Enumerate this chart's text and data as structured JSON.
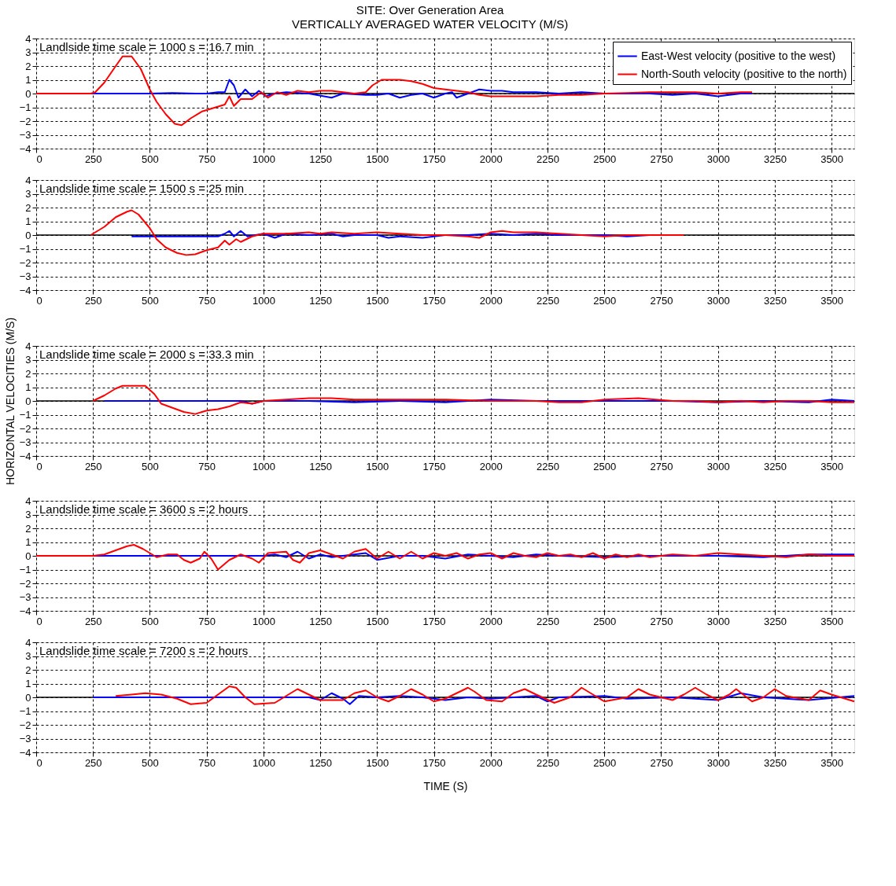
{
  "chart_data": [
    {
      "type": "line",
      "title": "SITE: Over Generation Area",
      "subtitle": "VERTICALLY AVERAGED WATER VELOCITY (M/S)",
      "annotations": [
        "Landlside time scale = 1000  s = 16.7  min"
      ],
      "xlim": [
        0,
        3600
      ],
      "ylim": [
        -4,
        4
      ],
      "xticks": [
        0,
        250,
        500,
        750,
        1000,
        1250,
        1500,
        1750,
        2000,
        2250,
        2500,
        2750,
        3000,
        3250,
        3500
      ],
      "yticks": [
        -4,
        -3,
        -2,
        -1,
        0,
        1,
        2,
        3,
        4
      ],
      "grid": true,
      "legend": "top right",
      "line_style": "solid",
      "ref_lines": [
        {
          "axis": "y",
          "value": 0,
          "color": "#000000"
        }
      ],
      "series": [
        {
          "name": "East-West velocity (positive to the west)",
          "color": "#0000ff",
          "x": [
            0,
            250,
            500,
            600,
            700,
            750,
            800,
            830,
            850,
            870,
            890,
            920,
            950,
            980,
            1010,
            1050,
            1100,
            1200,
            1300,
            1350,
            1450,
            1500,
            1550,
            1600,
            1650,
            1700,
            1750,
            1800,
            1830,
            1850,
            1900,
            1950,
            2000,
            2050,
            2100,
            2200,
            2300,
            2400,
            2500,
            2600,
            2700,
            2800,
            2900,
            3000,
            3100,
            3150
          ],
          "values": [
            0,
            0,
            0,
            0.05,
            0,
            0,
            0.1,
            0.1,
            1.0,
            0.6,
            -0.3,
            0.3,
            -0.2,
            0.2,
            -0.2,
            0,
            0.1,
            0,
            -0.3,
            0,
            -0.1,
            -0.1,
            0,
            -0.3,
            -0.1,
            0,
            -0.3,
            0,
            0.1,
            -0.3,
            0,
            0.3,
            0.2,
            0.2,
            0.1,
            0.1,
            0,
            0.1,
            0,
            0,
            0,
            -0.1,
            0,
            -0.2,
            0,
            0
          ]
        },
        {
          "name": "North-South velocity (positive to the north)",
          "color": "#ff0000",
          "x": [
            0,
            240,
            260,
            300,
            350,
            380,
            420,
            460,
            500,
            530,
            570,
            610,
            640,
            680,
            730,
            790,
            830,
            850,
            870,
            900,
            950,
            990,
            1020,
            1060,
            1100,
            1150,
            1200,
            1250,
            1300,
            1350,
            1400,
            1450,
            1480,
            1520,
            1600,
            1650,
            1700,
            1750,
            1800,
            1850,
            1900,
            1950,
            2000,
            2100,
            2200,
            2300,
            2400,
            2500,
            2600,
            2700,
            2800,
            2900,
            3000,
            3100,
            3150
          ],
          "values": [
            0,
            0,
            0.1,
            0.8,
            2.0,
            2.7,
            2.7,
            1.8,
            0.3,
            -0.6,
            -1.5,
            -2.2,
            -2.3,
            -1.8,
            -1.3,
            -1.0,
            -0.8,
            -0.2,
            -0.9,
            -0.4,
            -0.4,
            0.1,
            -0.3,
            0.1,
            -0.1,
            0.2,
            0.1,
            0.2,
            0.2,
            0.1,
            0,
            0.1,
            0.6,
            1.0,
            1.0,
            0.9,
            0.7,
            0.4,
            0.3,
            0.2,
            0.1,
            -0.1,
            -0.2,
            -0.2,
            -0.2,
            -0.1,
            -0.1,
            0,
            0.05,
            0.1,
            0.1,
            0.1,
            0,
            0.1,
            0.1
          ]
        }
      ]
    },
    {
      "type": "line",
      "annotations": [
        "Landslide time scale = 1500 s = 25 min"
      ],
      "xlim": [
        0,
        3600
      ],
      "ylim": [
        -4,
        4
      ],
      "xticks": [
        0,
        250,
        500,
        750,
        1000,
        1250,
        1500,
        1750,
        2000,
        2250,
        2500,
        2750,
        3000,
        3250,
        3500
      ],
      "yticks": [
        -4,
        -3,
        -2,
        -1,
        0,
        1,
        2,
        3,
        4
      ],
      "grid": true,
      "line_style": "solid",
      "ref_lines": [
        {
          "axis": "y",
          "value": 0,
          "color": "#000000"
        }
      ],
      "series": [
        {
          "color": "#0000ff",
          "x": [
            420,
            800,
            830,
            850,
            870,
            900,
            930,
            1000,
            1050,
            1100,
            1200,
            1300,
            1350,
            1400,
            1500,
            1550,
            1600,
            1700,
            1800,
            1900,
            2000,
            2100,
            2200,
            2300,
            2400,
            2500,
            2600,
            2700,
            2800
          ],
          "values": [
            -0.1,
            -0.1,
            0.1,
            0.3,
            -0.1,
            0.3,
            -0.1,
            0.1,
            -0.2,
            0.1,
            0,
            0.1,
            -0.1,
            0,
            0,
            -0.2,
            -0.1,
            -0.2,
            0,
            0,
            0.1,
            0,
            0.1,
            0,
            0,
            0,
            -0.1,
            0,
            0
          ]
        },
        {
          "color": "#ff0000",
          "x": [
            240,
            250,
            300,
            350,
            400,
            420,
            450,
            500,
            530,
            570,
            620,
            660,
            700,
            750,
            800,
            830,
            850,
            880,
            900,
            950,
            1000,
            1100,
            1200,
            1250,
            1300,
            1400,
            1500,
            1600,
            1700,
            1800,
            1900,
            1950,
            2000,
            2050,
            2100,
            2200,
            2300,
            2400,
            2500,
            2600,
            2700,
            2800,
            2850
          ],
          "values": [
            0,
            0.1,
            0.6,
            1.3,
            1.7,
            1.8,
            1.5,
            0.5,
            -0.3,
            -0.9,
            -1.3,
            -1.45,
            -1.4,
            -1.1,
            -0.9,
            -0.4,
            -0.7,
            -0.3,
            -0.5,
            -0.1,
            0.1,
            0.1,
            0.2,
            0.1,
            0.2,
            0.1,
            0.2,
            0.1,
            0,
            0,
            -0.1,
            -0.2,
            0.2,
            0.3,
            0.2,
            0.2,
            0.1,
            0,
            -0.1,
            0,
            0,
            0,
            0
          ]
        }
      ]
    },
    {
      "type": "line",
      "annotations": [
        "Landslide time scale = 2000 s = 33.3 min"
      ],
      "ylabel": "HORIZONTAL VELOCITIES (M/S)",
      "xlim": [
        0,
        3600
      ],
      "ylim": [
        -4,
        4
      ],
      "xticks": [
        0,
        250,
        500,
        750,
        1000,
        1250,
        1500,
        1750,
        2000,
        2250,
        2500,
        2750,
        3000,
        3250,
        3500
      ],
      "yticks": [
        -4,
        -3,
        -2,
        -1,
        0,
        1,
        2,
        3,
        4
      ],
      "grid": true,
      "line_style": "solid",
      "ref_lines": [
        {
          "axis": "y",
          "value": 0,
          "color": "#000000"
        }
      ],
      "series": [
        {
          "color": "#0000ff",
          "x": [
            300,
            900,
            950,
            1000,
            1200,
            1400,
            1600,
            1800,
            2000,
            2200,
            2500,
            2800,
            3000,
            3200,
            3400,
            3500,
            3600
          ],
          "values": [
            0,
            0,
            -0.2,
            0,
            0,
            -0.1,
            0,
            -0.1,
            0.1,
            0,
            0,
            0,
            -0.1,
            0,
            -0.1,
            0.1,
            0
          ]
        },
        {
          "color": "#ff0000",
          "x": [
            250,
            300,
            350,
            380,
            480,
            520,
            550,
            600,
            650,
            700,
            750,
            800,
            850,
            900,
            950,
            1000,
            1100,
            1200,
            1300,
            1400,
            1600,
            1800,
            2000,
            2200,
            2300,
            2400,
            2500,
            2650,
            2800,
            2900,
            3000,
            3100,
            3200,
            3300,
            3400,
            3500,
            3600
          ],
          "values": [
            0,
            0.4,
            0.9,
            1.1,
            1.1,
            0.5,
            -0.2,
            -0.5,
            -0.8,
            -0.95,
            -0.7,
            -0.6,
            -0.4,
            -0.1,
            -0.2,
            0,
            0.1,
            0.2,
            0.2,
            0.1,
            0.1,
            0.1,
            0,
            0,
            -0.1,
            -0.1,
            0.1,
            0.2,
            0,
            0,
            -0.1,
            0,
            -0.1,
            0,
            0,
            -0.1,
            -0.1
          ]
        }
      ]
    },
    {
      "type": "line",
      "annotations": [
        "Landslide time scale = 3600 s = 2 hours"
      ],
      "xlim": [
        0,
        3600
      ],
      "ylim": [
        -4,
        4
      ],
      "xticks": [
        0,
        250,
        500,
        750,
        1000,
        1250,
        1500,
        1750,
        2000,
        2250,
        2500,
        2750,
        3000,
        3250,
        3500
      ],
      "yticks": [
        -4,
        -3,
        -2,
        -1,
        0,
        1,
        2,
        3,
        4
      ],
      "grid": true,
      "line_style": "solid",
      "ref_lines": [
        {
          "axis": "y",
          "value": 0,
          "color": "#000000"
        }
      ],
      "series": [
        {
          "color": "#0000ff",
          "x": [
            0,
            500,
            1000,
            1050,
            1100,
            1150,
            1200,
            1250,
            1300,
            1400,
            1450,
            1500,
            1600,
            1700,
            1800,
            1900,
            2000,
            2100,
            2200,
            2300,
            2500,
            2700,
            3000,
            3200,
            3400,
            3600
          ],
          "values": [
            0,
            0,
            0,
            0.1,
            -0.1,
            0.3,
            -0.2,
            0.1,
            -0.1,
            0.1,
            0.2,
            -0.3,
            0,
            0,
            -0.2,
            0.1,
            0,
            -0.1,
            0.1,
            0,
            -0.1,
            0,
            0,
            -0.1,
            0.1,
            0.1
          ]
        },
        {
          "color": "#ff0000",
          "x": [
            0,
            250,
            300,
            350,
            400,
            430,
            470,
            530,
            580,
            620,
            650,
            680,
            720,
            740,
            770,
            800,
            850,
            900,
            950,
            980,
            1020,
            1100,
            1130,
            1160,
            1200,
            1250,
            1300,
            1350,
            1400,
            1450,
            1500,
            1550,
            1600,
            1650,
            1700,
            1750,
            1800,
            1850,
            1900,
            1950,
            2000,
            2050,
            2100,
            2150,
            2200,
            2250,
            2300,
            2350,
            2400,
            2450,
            2500,
            2550,
            2600,
            2650,
            2700,
            2800,
            2900,
            3000,
            3100,
            3200,
            3300,
            3400,
            3500,
            3600
          ],
          "values": [
            0,
            0,
            0.1,
            0.4,
            0.7,
            0.8,
            0.5,
            -0.1,
            0.1,
            0.1,
            -0.3,
            -0.5,
            -0.2,
            0.3,
            -0.2,
            -1.0,
            -0.3,
            0.1,
            -0.2,
            -0.5,
            0.2,
            0.3,
            -0.3,
            -0.5,
            0.2,
            0.4,
            0.1,
            -0.2,
            0.3,
            0.5,
            -0.2,
            0.3,
            -0.2,
            0.3,
            -0.2,
            0.2,
            0,
            0.2,
            -0.2,
            0.1,
            0.2,
            -0.2,
            0.2,
            0,
            -0.1,
            0.2,
            0,
            0.1,
            -0.1,
            0.2,
            -0.2,
            0.1,
            -0.1,
            0.1,
            -0.1,
            0.1,
            0,
            0.2,
            0.1,
            0,
            -0.1,
            0.1,
            0,
            0
          ]
        }
      ]
    },
    {
      "type": "line",
      "annotations": [
        "Landslide time scale = 7200 s = 2 hours"
      ],
      "xlabel": "TIME (S)",
      "xlim": [
        0,
        3600
      ],
      "ylim": [
        -4,
        4
      ],
      "xticks": [
        0,
        250,
        500,
        750,
        1000,
        1250,
        1500,
        1750,
        2000,
        2250,
        2500,
        2750,
        3000,
        3250,
        3500
      ],
      "yticks": [
        -4,
        -3,
        -2,
        -1,
        0,
        1,
        2,
        3,
        4
      ],
      "grid": true,
      "line_style": "solid",
      "ref_lines": [
        {
          "axis": "y",
          "value": 0,
          "color": "#000000"
        }
      ],
      "series": [
        {
          "color": "#0000ff",
          "x": [
            250,
            1000,
            1100,
            1200,
            1250,
            1300,
            1350,
            1380,
            1420,
            1500,
            1600,
            1700,
            1800,
            1900,
            2000,
            2100,
            2200,
            2250,
            2300,
            2500,
            2600,
            2800,
            3000,
            3100,
            3200,
            3400,
            3600
          ],
          "values": [
            0,
            0,
            0,
            0,
            -0.2,
            0.3,
            -0.1,
            -0.5,
            0.1,
            0,
            0.1,
            0,
            -0.2,
            0,
            -0.1,
            0,
            0.1,
            -0.3,
            0,
            0.1,
            -0.1,
            0,
            -0.2,
            0.3,
            0,
            -0.2,
            0.1
          ]
        },
        {
          "color": "#ff0000",
          "x": [
            350,
            420,
            480,
            550,
            620,
            680,
            750,
            800,
            850,
            880,
            920,
            960,
            1050,
            1100,
            1150,
            1200,
            1250,
            1350,
            1400,
            1450,
            1500,
            1550,
            1600,
            1650,
            1700,
            1750,
            1800,
            1850,
            1900,
            1930,
            1980,
            2050,
            2100,
            2150,
            2200,
            2280,
            2350,
            2400,
            2450,
            2500,
            2600,
            2650,
            2700,
            2800,
            2850,
            2900,
            2950,
            3000,
            3050,
            3080,
            3150,
            3200,
            3250,
            3300,
            3400,
            3450,
            3500,
            3600
          ],
          "values": [
            0.1,
            0.2,
            0.3,
            0.2,
            -0.1,
            -0.5,
            -0.4,
            0.2,
            0.8,
            0.7,
            0,
            -0.5,
            -0.4,
            0.1,
            0.6,
            0.2,
            -0.2,
            -0.2,
            0.3,
            0.5,
            0,
            -0.3,
            0.1,
            0.6,
            0.2,
            -0.3,
            -0.1,
            0.3,
            0.7,
            0.4,
            -0.2,
            -0.3,
            0.3,
            0.6,
            0.2,
            -0.4,
            0,
            0.7,
            0.2,
            -0.3,
            0,
            0.6,
            0.2,
            -0.2,
            0.2,
            0.7,
            0.2,
            -0.2,
            0.2,
            0.6,
            -0.3,
            0,
            0.6,
            0.1,
            -0.2,
            0.5,
            0.2,
            -0.3
          ]
        }
      ]
    }
  ]
}
